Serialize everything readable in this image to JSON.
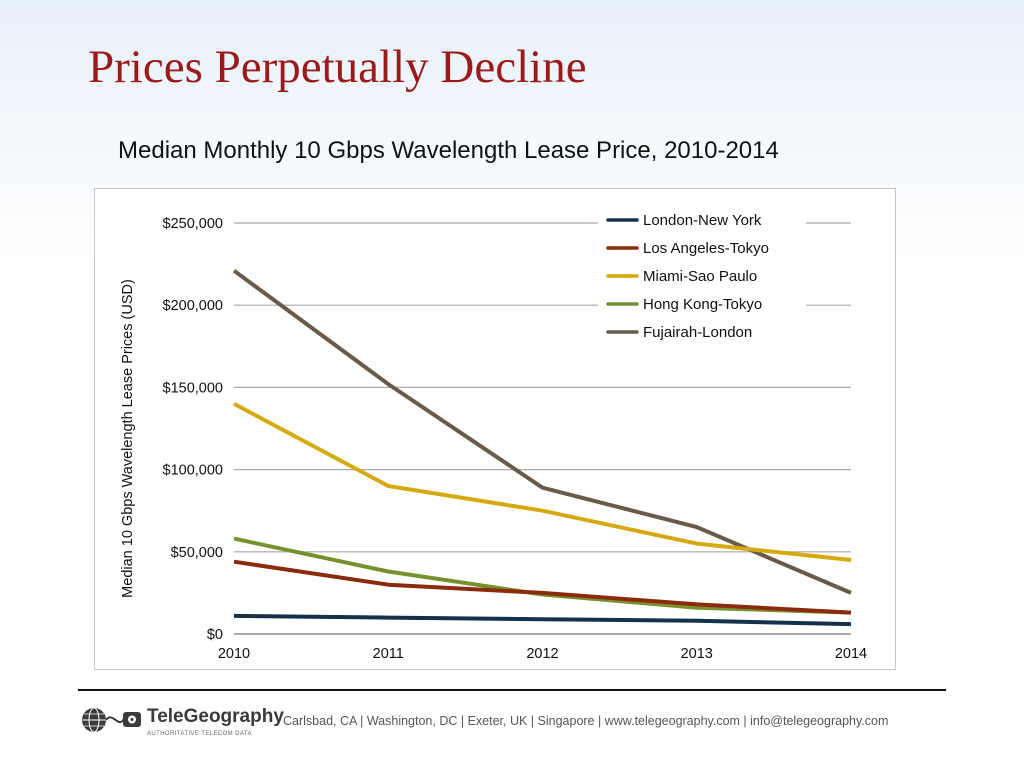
{
  "slide": {
    "title": "Prices Perpetually Decline"
  },
  "chart_data": {
    "type": "line",
    "title": "Median Monthly 10 Gbps Wavelength Lease Price, 2010-2014",
    "xlabel": "",
    "ylabel": "Median 10 Gbps Wavelength Lease Prices (USD)",
    "x": [
      2010,
      2011,
      2012,
      2013,
      2014
    ],
    "x_tick_labels": [
      "2010",
      "2011",
      "2012",
      "2013",
      "2014"
    ],
    "ylim": [
      0,
      250000
    ],
    "y_ticks": [
      0,
      50000,
      100000,
      150000,
      200000,
      250000
    ],
    "y_tick_labels": [
      "$0",
      "$50,000",
      "$100,000",
      "$150,000",
      "$200,000",
      "$250,000"
    ],
    "grid": "horizontal",
    "legend_position": "top-right",
    "series": [
      {
        "name": "London-New York",
        "color": "#14304a",
        "values": [
          11000,
          10000,
          9000,
          8000,
          6000
        ]
      },
      {
        "name": "Los Angeles-Tokyo",
        "color": "#8b2a0c",
        "values": [
          44000,
          30000,
          25000,
          18000,
          13000
        ]
      },
      {
        "name": "Miami-Sao Paulo",
        "color": "#d4aa0e",
        "values": [
          140000,
          90000,
          75000,
          55000,
          45000
        ]
      },
      {
        "name": "Hong Kong-Tokyo",
        "color": "#76912e",
        "values": [
          58000,
          38000,
          24000,
          16000,
          13000
        ]
      },
      {
        "name": "Fujairah-London",
        "color": "#695a49",
        "values": [
          221000,
          152000,
          89000,
          65000,
          25000
        ]
      }
    ]
  },
  "footer": {
    "company": "TeleGeography",
    "tagline": "AUTHORITATIVE TELECOM DATA",
    "contact": "Carlsbad, CA | Washington, DC | Exeter, UK | Singapore | www.telegeography.com | info@telegeography.com"
  }
}
